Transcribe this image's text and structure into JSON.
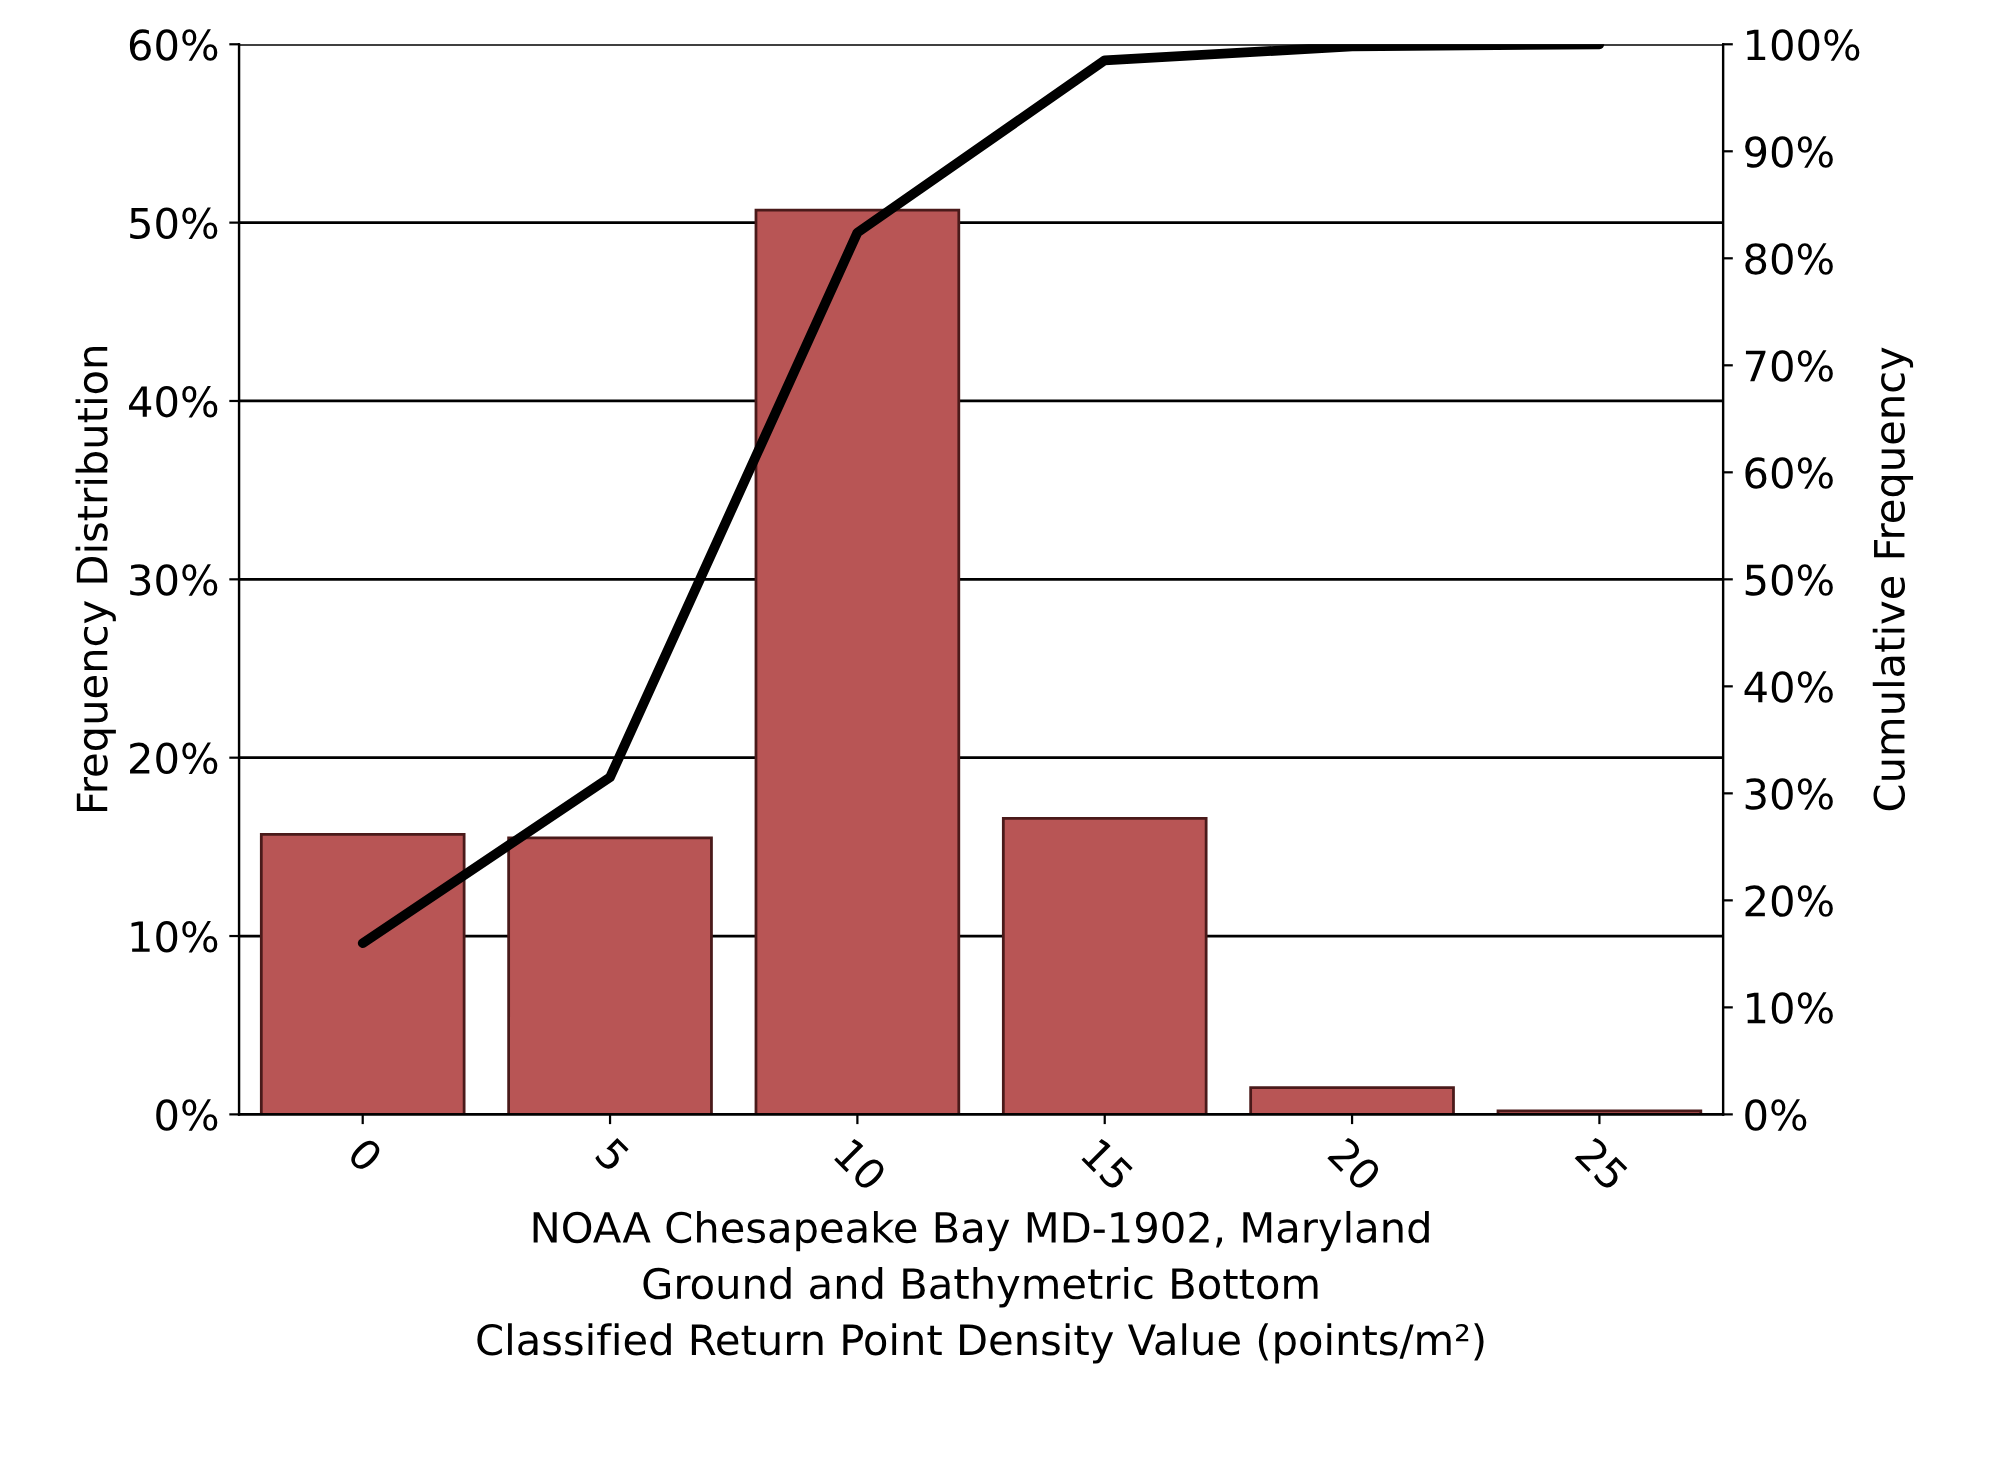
{
  "chart_data": {
    "type": "bar",
    "categories": [
      "0",
      "5",
      "10",
      "15",
      "20",
      "25"
    ],
    "xlabel": "NOAA Chesapeake Bay MD-1902, Maryland\nGround and Bathymetric Bottom\nClassified Return Point Density Value (points/m²)",
    "ylabel": "Frequency Distribution",
    "y2label": "Cumulative Frequency",
    "series": [
      {
        "color": "#b85555",
        "values": [
          15.7,
          15.5,
          50.7,
          16.6,
          1.5,
          0.2
        ]
      },
      {
        "type": "line",
        "axis": "y2",
        "color": "#000000",
        "values": [
          16,
          31.5,
          82.4,
          98.5,
          99.8,
          100
        ]
      }
    ],
    "ylim": [
      0,
      60
    ],
    "yticks": [
      {
        "value": 0,
        "label": "0%"
      },
      {
        "value": 10,
        "label": "10%"
      },
      {
        "value": 20,
        "label": "20%"
      },
      {
        "value": 30,
        "label": "30%"
      },
      {
        "value": 40,
        "label": "40%"
      },
      {
        "value": 50,
        "label": "50%"
      },
      {
        "value": 60,
        "label": "60%"
      }
    ],
    "y2lim": [
      0,
      100
    ],
    "y2ticks": [
      {
        "value": 0,
        "label": "0%"
      },
      {
        "value": 10,
        "label": "10%"
      },
      {
        "value": 20,
        "label": "20%"
      },
      {
        "value": 30,
        "label": "30%"
      },
      {
        "value": 40,
        "label": "40%"
      },
      {
        "value": 50,
        "label": "50%"
      },
      {
        "value": 60,
        "label": "60%"
      },
      {
        "value": 70,
        "label": "70%"
      },
      {
        "value": 80,
        "label": "80%"
      },
      {
        "value": 90,
        "label": "90%"
      },
      {
        "value": 100,
        "label": "100%"
      }
    ],
    "grid": "y",
    "legend": false
  }
}
